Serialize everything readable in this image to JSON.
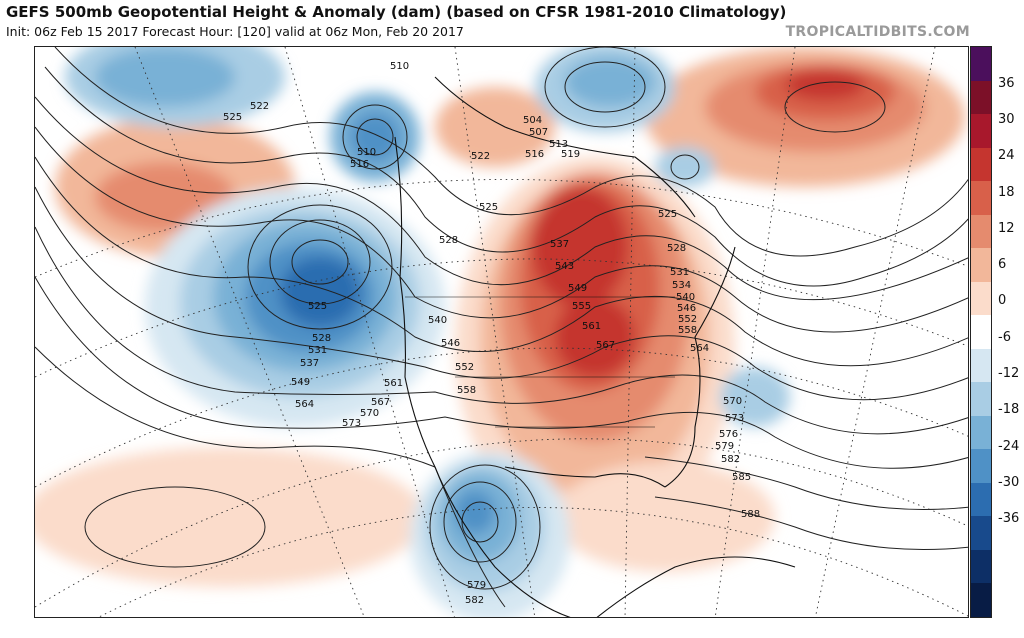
{
  "header": {
    "title": "GEFS 500mb Geopotential Height & Anomaly (dam) (based on CFSR 1981-2010 Climatology)",
    "subtitle": "Init: 06z Feb 15 2017   Forecast Hour: [120]   valid at 06z Mon, Feb 20 2017",
    "brand": "TROPICALTIDBITS.COM"
  },
  "colorbar": {
    "ticks": [
      "36",
      "30",
      "24",
      "18",
      "12",
      "6",
      "0",
      "-6",
      "-12",
      "-18",
      "-24",
      "-30",
      "-36"
    ],
    "colors": [
      "#4b0f5c",
      "#7c1028",
      "#a8182c",
      "#c5352f",
      "#d8604a",
      "#e58b6e",
      "#f2b79a",
      "#fbdccb",
      "#ffffff",
      "#d6e7f2",
      "#a9cde4",
      "#79b1d6",
      "#4f91c6",
      "#2c6db0",
      "#184a8c",
      "#0d2f66",
      "#081c45"
    ]
  },
  "map": {
    "height_labels": [
      "510",
      "522",
      "525",
      "510",
      "516",
      "504",
      "507",
      "513",
      "519",
      "516",
      "522",
      "525",
      "528",
      "537",
      "543",
      "549",
      "555",
      "561",
      "567",
      "525",
      "528",
      "531",
      "534",
      "540",
      "546",
      "552",
      "558",
      "564",
      "525",
      "528",
      "531",
      "537",
      "549",
      "564",
      "540",
      "546",
      "552",
      "558",
      "561",
      "567",
      "570",
      "573",
      "570",
      "573",
      "576",
      "579",
      "582",
      "585",
      "588",
      "579",
      "582"
    ]
  }
}
